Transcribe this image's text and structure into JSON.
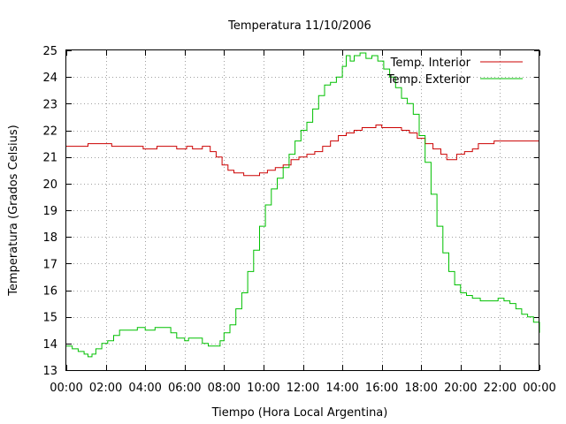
{
  "chart_data": {
    "type": "line",
    "title": "Temperatura 11/10/2006",
    "xlabel": "Tiempo (Hora Local Argentina)",
    "ylabel": "Temperatura (Grados Celsius)",
    "x_tick_labels": [
      "00:00",
      "02:00",
      "04:00",
      "06:00",
      "08:00",
      "10:00",
      "12:00",
      "14:00",
      "16:00",
      "18:00",
      "20:00",
      "22:00",
      "00:00"
    ],
    "x_range_hours": [
      0,
      24
    ],
    "ylim": [
      13,
      25
    ],
    "y_ticks": [
      13,
      14,
      15,
      16,
      17,
      18,
      19,
      20,
      21,
      22,
      23,
      24,
      25
    ],
    "grid": true,
    "legend_position": "top-right",
    "series": [
      {
        "name": "Temp. Interior",
        "color": "#cc0000",
        "points": [
          [
            0.0,
            21.4
          ],
          [
            1.0,
            21.4
          ],
          [
            1.1,
            21.5
          ],
          [
            2.2,
            21.5
          ],
          [
            2.3,
            21.4
          ],
          [
            3.8,
            21.4
          ],
          [
            3.9,
            21.3
          ],
          [
            4.5,
            21.3
          ],
          [
            4.6,
            21.4
          ],
          [
            5.5,
            21.4
          ],
          [
            5.6,
            21.3
          ],
          [
            6.0,
            21.3
          ],
          [
            6.1,
            21.4
          ],
          [
            6.3,
            21.4
          ],
          [
            6.4,
            21.3
          ],
          [
            6.8,
            21.3
          ],
          [
            6.9,
            21.4
          ],
          [
            7.1,
            21.4
          ],
          [
            7.3,
            21.2
          ],
          [
            7.6,
            21.0
          ],
          [
            7.9,
            20.7
          ],
          [
            8.2,
            20.5
          ],
          [
            8.5,
            20.4
          ],
          [
            8.8,
            20.4
          ],
          [
            9.0,
            20.3
          ],
          [
            9.5,
            20.3
          ],
          [
            9.8,
            20.4
          ],
          [
            10.2,
            20.5
          ],
          [
            10.6,
            20.6
          ],
          [
            11.0,
            20.7
          ],
          [
            11.4,
            20.9
          ],
          [
            11.8,
            21.0
          ],
          [
            12.2,
            21.1
          ],
          [
            12.6,
            21.2
          ],
          [
            13.0,
            21.4
          ],
          [
            13.4,
            21.6
          ],
          [
            13.8,
            21.8
          ],
          [
            14.2,
            21.9
          ],
          [
            14.6,
            22.0
          ],
          [
            15.0,
            22.1
          ],
          [
            15.5,
            22.1
          ],
          [
            15.7,
            22.2
          ],
          [
            15.9,
            22.2
          ],
          [
            16.0,
            22.1
          ],
          [
            16.5,
            22.1
          ],
          [
            17.0,
            22.0
          ],
          [
            17.4,
            21.9
          ],
          [
            17.8,
            21.7
          ],
          [
            18.2,
            21.5
          ],
          [
            18.6,
            21.3
          ],
          [
            19.0,
            21.1
          ],
          [
            19.3,
            20.9
          ],
          [
            19.6,
            20.9
          ],
          [
            19.8,
            21.1
          ],
          [
            20.2,
            21.2
          ],
          [
            20.6,
            21.3
          ],
          [
            20.9,
            21.5
          ],
          [
            21.5,
            21.5
          ],
          [
            21.7,
            21.6
          ],
          [
            24.0,
            21.6
          ]
        ]
      },
      {
        "name": "Temp. Exterior",
        "color": "#00c000",
        "points": [
          [
            0.0,
            13.9
          ],
          [
            0.3,
            13.8
          ],
          [
            0.6,
            13.7
          ],
          [
            0.9,
            13.6
          ],
          [
            1.1,
            13.5
          ],
          [
            1.3,
            13.6
          ],
          [
            1.5,
            13.8
          ],
          [
            1.8,
            14.0
          ],
          [
            2.1,
            14.1
          ],
          [
            2.4,
            14.3
          ],
          [
            2.7,
            14.5
          ],
          [
            3.5,
            14.5
          ],
          [
            3.6,
            14.6
          ],
          [
            3.9,
            14.6
          ],
          [
            4.0,
            14.5
          ],
          [
            4.4,
            14.5
          ],
          [
            4.5,
            14.6
          ],
          [
            5.0,
            14.6
          ],
          [
            5.3,
            14.4
          ],
          [
            5.6,
            14.2
          ],
          [
            6.0,
            14.1
          ],
          [
            6.2,
            14.2
          ],
          [
            6.6,
            14.2
          ],
          [
            6.9,
            14.0
          ],
          [
            7.2,
            13.9
          ],
          [
            7.5,
            13.9
          ],
          [
            7.8,
            14.1
          ],
          [
            8.0,
            14.4
          ],
          [
            8.3,
            14.7
          ],
          [
            8.6,
            15.3
          ],
          [
            8.9,
            15.9
          ],
          [
            9.2,
            16.7
          ],
          [
            9.5,
            17.5
          ],
          [
            9.8,
            18.4
          ],
          [
            10.1,
            19.2
          ],
          [
            10.4,
            19.8
          ],
          [
            10.7,
            20.2
          ],
          [
            11.0,
            20.6
          ],
          [
            11.3,
            21.1
          ],
          [
            11.6,
            21.6
          ],
          [
            11.9,
            22.0
          ],
          [
            12.2,
            22.3
          ],
          [
            12.5,
            22.8
          ],
          [
            12.8,
            23.3
          ],
          [
            13.1,
            23.7
          ],
          [
            13.4,
            23.8
          ],
          [
            13.7,
            24.0
          ],
          [
            14.0,
            24.4
          ],
          [
            14.2,
            24.8
          ],
          [
            14.4,
            24.6
          ],
          [
            14.6,
            24.8
          ],
          [
            14.9,
            24.9
          ],
          [
            15.2,
            24.7
          ],
          [
            15.5,
            24.8
          ],
          [
            15.8,
            24.6
          ],
          [
            16.1,
            24.3
          ],
          [
            16.4,
            24.0
          ],
          [
            16.7,
            23.6
          ],
          [
            17.0,
            23.2
          ],
          [
            17.3,
            23.0
          ],
          [
            17.6,
            22.6
          ],
          [
            17.9,
            21.8
          ],
          [
            18.2,
            20.8
          ],
          [
            18.5,
            19.6
          ],
          [
            18.8,
            18.4
          ],
          [
            19.1,
            17.4
          ],
          [
            19.4,
            16.7
          ],
          [
            19.7,
            16.2
          ],
          [
            20.0,
            15.9
          ],
          [
            20.3,
            15.8
          ],
          [
            20.6,
            15.7
          ],
          [
            21.0,
            15.6
          ],
          [
            21.5,
            15.6
          ],
          [
            21.9,
            15.7
          ],
          [
            22.2,
            15.6
          ],
          [
            22.5,
            15.5
          ],
          [
            22.8,
            15.3
          ],
          [
            23.1,
            15.1
          ],
          [
            23.4,
            15.0
          ],
          [
            23.7,
            14.8
          ],
          [
            24.0,
            14.4
          ]
        ]
      }
    ]
  }
}
